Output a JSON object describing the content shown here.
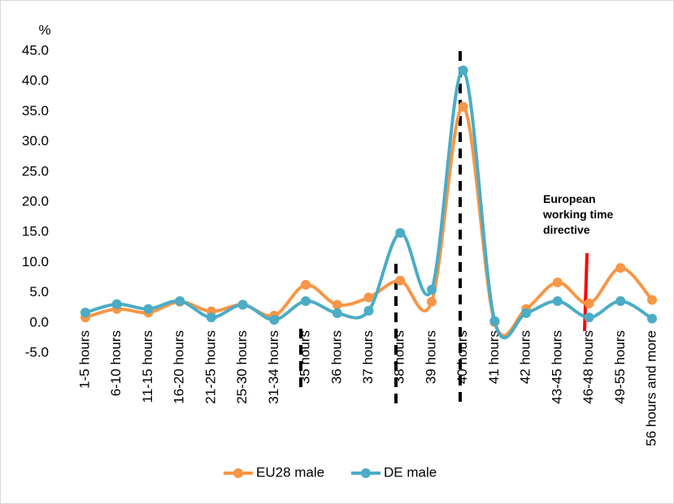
{
  "chart_data": {
    "type": "line",
    "y_label": "%",
    "annotation": "European working time directive",
    "categories": [
      "1-5 hours",
      "6-10 hours",
      "11-15 hours",
      "16-20 hours",
      "21-25 hours",
      "25-30 hours",
      "31-34 hours",
      "35 hours",
      "36 hours",
      "37 hours",
      "38 hours",
      "39 hours",
      "40 hours",
      "41 hours",
      "42 hours",
      "43-45 hours",
      "46-48 hours",
      "49-55 hours",
      "56 hours and more"
    ],
    "series": [
      {
        "name": "EU28 male",
        "color": "#f79646",
        "values": [
          0.9,
          2.3,
          1.7,
          3.5,
          1.9,
          3.0,
          1.2,
          6.3,
          3.0,
          4.2,
          7.0,
          3.5,
          35.8,
          0.1,
          2.3,
          6.7,
          3.2,
          9.1,
          3.8
        ]
      },
      {
        "name": "DE male",
        "color": "#4bacc6",
        "values": [
          1.7,
          3.1,
          2.3,
          3.6,
          0.9,
          3.0,
          0.5,
          3.6,
          1.6,
          2.0,
          14.9,
          5.5,
          41.8,
          0.3,
          1.6,
          3.6,
          0.9,
          3.6,
          0.7
        ]
      }
    ],
    "ylim": [
      -5,
      45
    ],
    "yticks": [
      {
        "value": -5,
        "label": "-5.0"
      },
      {
        "value": 0,
        "label": "0.0"
      },
      {
        "value": 5,
        "label": "5.0"
      },
      {
        "value": 10,
        "label": "10.0"
      },
      {
        "value": 15,
        "label": "15.0"
      },
      {
        "value": 20,
        "label": "20.0"
      },
      {
        "value": 25,
        "label": "25.0"
      },
      {
        "value": 30,
        "label": "30.0"
      },
      {
        "value": 35,
        "label": "35.0"
      },
      {
        "value": 40,
        "label": "40.0"
      },
      {
        "value": 45,
        "label": "45.0"
      }
    ],
    "grid": false,
    "smooth": true,
    "legend": "bottom"
  }
}
